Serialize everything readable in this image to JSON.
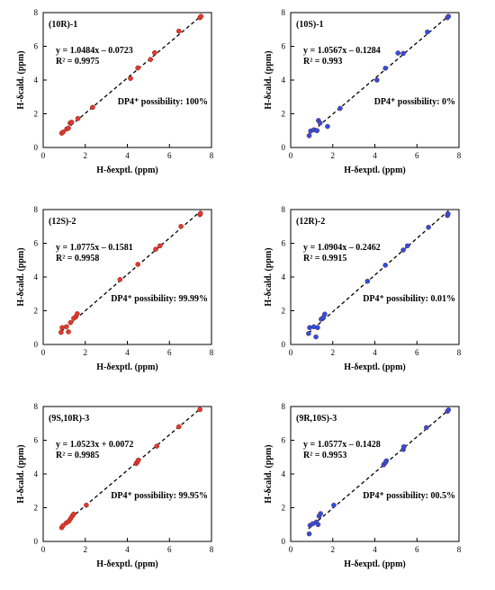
{
  "chart_data": [
    {
      "type": "scatter",
      "title": "(10R)-1",
      "xlabel": "H-δexptl. (ppm)",
      "ylabel": "H-δcald. (ppm)",
      "equation": "y = 1.0484x – 0.0723",
      "r2": "R² = 0.9975",
      "dp4": "DP4⁺ possibility: 100%",
      "slope": 1.0484,
      "intercept": -0.0723,
      "xlim": [
        0,
        8
      ],
      "ylim": [
        0,
        8
      ],
      "xticks": [
        "0",
        "2",
        "4",
        "6",
        "8"
      ],
      "yticks": [
        "0",
        "2",
        "4",
        "6",
        "8"
      ],
      "point_color": "#e03a2e",
      "points": [
        [
          0.88,
          0.85
        ],
        [
          0.95,
          0.92
        ],
        [
          1.12,
          1.1
        ],
        [
          1.2,
          1.15
        ],
        [
          1.28,
          1.45
        ],
        [
          1.35,
          1.5
        ],
        [
          1.65,
          1.72
        ],
        [
          2.35,
          2.38
        ],
        [
          4.15,
          4.1
        ],
        [
          4.5,
          4.72
        ],
        [
          5.1,
          5.22
        ],
        [
          5.3,
          5.62
        ],
        [
          6.45,
          6.9
        ],
        [
          7.45,
          7.7
        ],
        [
          7.5,
          7.78
        ]
      ]
    },
    {
      "type": "scatter",
      "title": "(10S)-1",
      "xlabel": "H-δexptl. (ppm)",
      "ylabel": "H-δcald. (ppm)",
      "equation": "y = 1.0567x – 0.1284",
      "r2": "R² = 0.993",
      "dp4": "DP4⁺ possibility: 0%",
      "slope": 1.0567,
      "intercept": -0.1284,
      "xlim": [
        0,
        8
      ],
      "ylim": [
        0,
        8
      ],
      "xticks": [
        "0",
        "2",
        "4",
        "6",
        "8"
      ],
      "yticks": [
        "0",
        "2",
        "4",
        "6",
        "8"
      ],
      "point_color": "#2f4fe0",
      "points": [
        [
          0.88,
          0.7
        ],
        [
          0.95,
          0.98
        ],
        [
          1.1,
          1.05
        ],
        [
          1.25,
          1.0
        ],
        [
          1.32,
          1.6
        ],
        [
          1.4,
          1.45
        ],
        [
          1.75,
          1.25
        ],
        [
          2.35,
          2.32
        ],
        [
          4.1,
          4.0
        ],
        [
          4.5,
          4.7
        ],
        [
          5.1,
          5.6
        ],
        [
          5.35,
          5.58
        ],
        [
          6.5,
          6.85
        ],
        [
          7.45,
          7.7
        ],
        [
          7.5,
          7.78
        ]
      ]
    },
    {
      "type": "scatter",
      "title": "(12S)-2",
      "xlabel": "H-δexptl. (ppm)",
      "ylabel": "H-δcald. (ppm)",
      "equation": "y = 1.0775x – 0.1581",
      "r2": "R² = 0.9958",
      "dp4": "DP4⁺ possibility: 99.99%",
      "slope": 1.0775,
      "intercept": -0.1581,
      "xlim": [
        0,
        8
      ],
      "ylim": [
        0,
        8
      ],
      "xticks": [
        "0",
        "2",
        "4",
        "6",
        "8"
      ],
      "yticks": [
        "0",
        "2",
        "4",
        "6",
        "8"
      ],
      "point_color": "#e03a2e",
      "points": [
        [
          0.85,
          0.72
        ],
        [
          0.9,
          1.0
        ],
        [
          1.1,
          1.05
        ],
        [
          1.2,
          0.75
        ],
        [
          1.3,
          1.3
        ],
        [
          1.45,
          1.55
        ],
        [
          1.55,
          1.65
        ],
        [
          1.62,
          1.82
        ],
        [
          3.65,
          3.85
        ],
        [
          4.5,
          4.75
        ],
        [
          5.35,
          5.65
        ],
        [
          5.55,
          5.85
        ],
        [
          6.55,
          7.0
        ],
        [
          7.45,
          7.7
        ],
        [
          7.48,
          7.78
        ]
      ]
    },
    {
      "type": "scatter",
      "title": "(12R)-2",
      "xlabel": "H-δexptl. (ppm)",
      "ylabel": "H-δcald. (ppm)",
      "equation": "y = 1.0904x – 0.2462",
      "r2": "R² = 0.9915",
      "dp4": "DP4⁺ possibility: 0.01%",
      "slope": 1.0904,
      "intercept": -0.2462,
      "xlim": [
        0,
        8
      ],
      "ylim": [
        0,
        8
      ],
      "xticks": [
        "0",
        "2",
        "4",
        "6",
        "8"
      ],
      "yticks": [
        "0",
        "2",
        "4",
        "6",
        "8"
      ],
      "point_color": "#2f4fe0",
      "points": [
        [
          0.85,
          0.65
        ],
        [
          0.9,
          1.0
        ],
        [
          1.1,
          1.05
        ],
        [
          1.2,
          0.45
        ],
        [
          1.28,
          1.0
        ],
        [
          1.45,
          1.5
        ],
        [
          1.55,
          1.6
        ],
        [
          1.62,
          1.8
        ],
        [
          3.65,
          3.75
        ],
        [
          4.5,
          4.7
        ],
        [
          5.35,
          5.6
        ],
        [
          5.55,
          5.85
        ],
        [
          6.55,
          6.95
        ],
        [
          7.45,
          7.65
        ],
        [
          7.48,
          7.75
        ]
      ]
    },
    {
      "type": "scatter",
      "title": "(9S,10R)-3",
      "xlabel": "H-δexptl. (ppm)",
      "ylabel": "H-δcald. (ppm)",
      "equation": "y = 1.0523x + 0.0072",
      "r2": "R² = 0.9985",
      "dp4": "DP4⁺ possibility: 99.95%",
      "slope": 1.0523,
      "intercept": 0.0072,
      "xlim": [
        0,
        8
      ],
      "ylim": [
        0,
        8
      ],
      "xticks": [
        "0",
        "2",
        "4",
        "6",
        "8"
      ],
      "yticks": [
        "0",
        "2",
        "4",
        "6",
        "8"
      ],
      "point_color": "#e03a2e",
      "points": [
        [
          0.88,
          0.82
        ],
        [
          0.95,
          0.95
        ],
        [
          1.1,
          1.1
        ],
        [
          1.22,
          1.2
        ],
        [
          1.3,
          1.35
        ],
        [
          1.38,
          1.5
        ],
        [
          1.45,
          1.62
        ],
        [
          2.05,
          2.15
        ],
        [
          4.42,
          4.62
        ],
        [
          4.48,
          4.72
        ],
        [
          4.52,
          4.82
        ],
        [
          5.4,
          5.65
        ],
        [
          6.45,
          6.8
        ],
        [
          7.45,
          7.82
        ]
      ]
    },
    {
      "type": "scatter",
      "title": "(9R,10S)-3",
      "xlabel": "H-δexptl. (ppm)",
      "ylabel": "H-δcald. (ppm)",
      "equation": "y = 1.0577x – 0.1428",
      "r2": "R² = 0.9953",
      "dp4": "DP4⁺ possibility: 00.5%",
      "slope": 1.0577,
      "intercept": -0.1428,
      "xlim": [
        0,
        8
      ],
      "ylim": [
        0,
        8
      ],
      "xticks": [
        "0",
        "2",
        "4",
        "6",
        "8"
      ],
      "yticks": [
        "0",
        "2",
        "4",
        "6",
        "8"
      ],
      "point_color": "#2f4fe0",
      "points": [
        [
          0.88,
          0.45
        ],
        [
          0.92,
          0.95
        ],
        [
          1.05,
          1.05
        ],
        [
          1.22,
          1.15
        ],
        [
          1.3,
          1.0
        ],
        [
          1.35,
          1.5
        ],
        [
          1.42,
          1.65
        ],
        [
          2.05,
          2.15
        ],
        [
          4.42,
          4.55
        ],
        [
          4.5,
          4.68
        ],
        [
          4.55,
          4.78
        ],
        [
          5.35,
          5.45
        ],
        [
          5.38,
          5.62
        ],
        [
          6.45,
          6.75
        ],
        [
          7.45,
          7.72
        ],
        [
          7.5,
          7.8
        ]
      ]
    }
  ]
}
